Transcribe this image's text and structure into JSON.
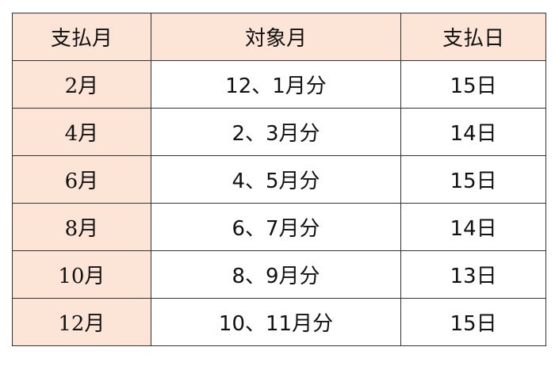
{
  "table": {
    "headers": [
      "支払月",
      "対象月",
      "支払日"
    ],
    "rows": [
      [
        "2月",
        "12、1月分",
        "15日"
      ],
      [
        "4月",
        "2、3月分",
        "14日"
      ],
      [
        "6月",
        "4、5月分",
        "15日"
      ],
      [
        "8月",
        "6、7月分",
        "14日"
      ],
      [
        "10月",
        "8、9月分",
        "13日"
      ],
      [
        "12月",
        "10、11月分",
        "15日"
      ]
    ],
    "colors": {
      "header_fill": "#fce4d6",
      "border": "#333333"
    }
  }
}
